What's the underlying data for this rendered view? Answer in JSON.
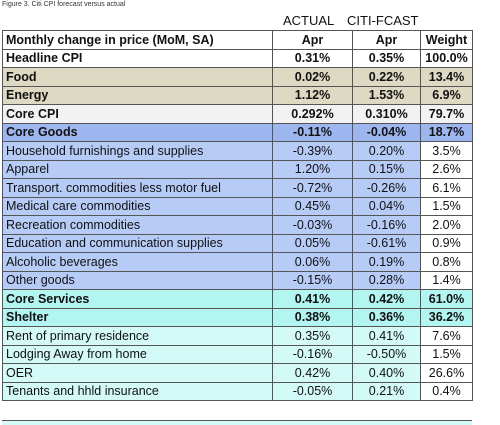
{
  "caption": "Figure 3. Citi CPI forecast versus actual",
  "col_groups": [
    "ACTUAL",
    "CITI-FCAST"
  ],
  "table": {
    "header": [
      "Monthly change in price (MoM, SA)",
      "Apr",
      "Apr",
      "Weight"
    ],
    "rows": [
      [
        "Headline CPI",
        "0.31%",
        "0.35%",
        "100.0%"
      ],
      [
        "Food",
        "0.02%",
        "0.22%",
        "13.4%"
      ],
      [
        "Energy",
        "1.12%",
        "1.53%",
        "6.9%"
      ],
      [
        "Core CPI",
        "0.292%",
        "0.310%",
        "79.7%"
      ],
      [
        "Core Goods",
        "-0.11%",
        "-0.04%",
        "18.7%"
      ],
      [
        "Household furnishings and supplies",
        "-0.39%",
        "0.20%",
        "3.5%"
      ],
      [
        "Apparel",
        "1.20%",
        "0.15%",
        "2.6%"
      ],
      [
        "Transport. commodities less motor fuel",
        "-0.72%",
        "-0.26%",
        "6.1%"
      ],
      [
        "Medical care commodities",
        "0.45%",
        "0.04%",
        "1.5%"
      ],
      [
        "Recreation commodities",
        "-0.03%",
        "-0.16%",
        "2.0%"
      ],
      [
        "Education and communication supplies",
        "0.05%",
        "-0.61%",
        "0.9%"
      ],
      [
        "Alcoholic beverages",
        "0.06%",
        "0.19%",
        "0.8%"
      ],
      [
        "Other goods",
        "-0.15%",
        "0.28%",
        "1.4%"
      ],
      [
        "Core Services",
        "0.41%",
        "0.42%",
        "61.0%"
      ],
      [
        "Shelter",
        "0.38%",
        "0.36%",
        "36.2%"
      ],
      [
        "Rent of primary residence",
        "0.35%",
        "0.41%",
        "7.6%"
      ],
      [
        "Lodging Away from home",
        "-0.16%",
        "-0.50%",
        "1.5%"
      ],
      [
        "OER",
        "0.42%",
        "0.40%",
        "26.6%"
      ],
      [
        "Tenants and hhld insurance",
        "-0.05%",
        "0.21%",
        "0.4%"
      ]
    ]
  }
}
